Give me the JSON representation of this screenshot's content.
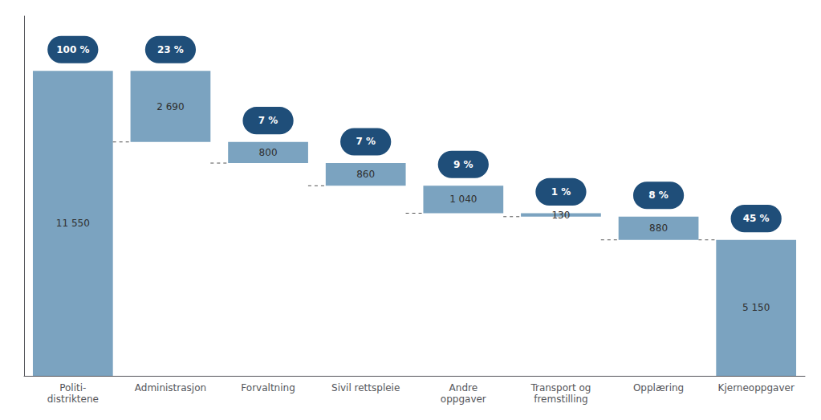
{
  "chart_data": {
    "type": "waterfall",
    "categories": [
      "Politi-\ndistriktene",
      "Administrasjon",
      "Forvaltning",
      "Sivil rettspleie",
      "Andre\noppgaver",
      "Transport og\nfremstilling",
      "Opplæring",
      "Kjerneoppgaver"
    ],
    "values": [
      11550,
      2690,
      800,
      860,
      1040,
      130,
      880,
      5150
    ],
    "value_labels": [
      "11 550",
      "2 690",
      "800",
      "860",
      "1 040",
      "130",
      "880",
      "5 150"
    ],
    "percentages": [
      "100 %",
      "23 %",
      "7 %",
      "7 %",
      "9 %",
      "1 %",
      "8 %",
      "45 %"
    ],
    "color": "#7BA3C0",
    "ylim": [
      0,
      13629
    ],
    "data_labels": true,
    "tick_labels": "x",
    "grid": false
  }
}
